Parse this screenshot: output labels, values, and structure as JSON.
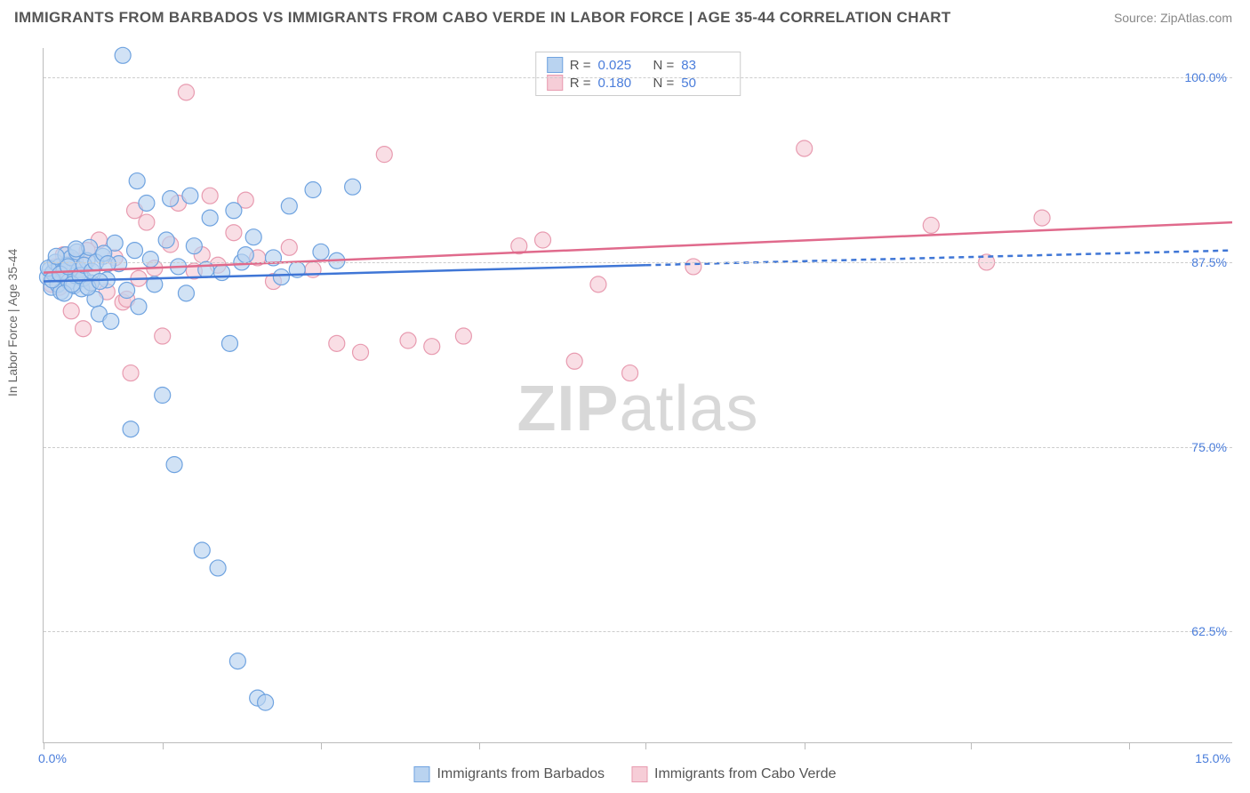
{
  "header": {
    "title": "IMMIGRANTS FROM BARBADOS VS IMMIGRANTS FROM CABO VERDE IN LABOR FORCE | AGE 35-44 CORRELATION CHART",
    "source": "Source: ZipAtlas.com"
  },
  "axis": {
    "y_title": "In Labor Force | Age 35-44",
    "x_min_label": "0.0%",
    "x_max_label": "15.0%",
    "y_labels": [
      "62.5%",
      "75.0%",
      "87.5%",
      "100.0%"
    ],
    "xlim": [
      0,
      15
    ],
    "ylim": [
      55,
      102
    ],
    "y_ticks": [
      62.5,
      75.0,
      87.5,
      100.0
    ],
    "x_tick_positions": [
      0,
      1.5,
      3.5,
      5.5,
      7.6,
      9.6,
      11.7,
      13.7
    ],
    "grid_color": "#cccccc",
    "axis_color": "#bbbbbb",
    "label_color": "#4a7ddb",
    "label_fontsize": 14
  },
  "series": {
    "barbados": {
      "name": "Immigrants from Barbados",
      "color_fill": "#b9d3f0",
      "color_stroke": "#6fa3e0",
      "line_color": "#3f76d6",
      "marker_radius": 9,
      "marker_opacity": 0.65,
      "R": "0.025",
      "N": "83",
      "trend": {
        "x1": 0,
        "y1": 86.2,
        "x2": 7.6,
        "y2": 87.3,
        "dash_x2": 15,
        "dash_y2": 88.3
      },
      "points": [
        [
          0.05,
          86.5
        ],
        [
          0.08,
          87.0
        ],
        [
          0.1,
          85.8
        ],
        [
          0.12,
          86.8
        ],
        [
          0.15,
          87.5
        ],
        [
          0.18,
          86.0
        ],
        [
          0.2,
          87.2
        ],
        [
          0.22,
          85.5
        ],
        [
          0.25,
          86.9
        ],
        [
          0.28,
          88.0
        ],
        [
          0.3,
          87.3
        ],
        [
          0.32,
          86.2
        ],
        [
          0.35,
          87.8
        ],
        [
          0.38,
          85.9
        ],
        [
          0.4,
          86.6
        ],
        [
          0.42,
          88.2
        ],
        [
          0.45,
          87.0
        ],
        [
          0.48,
          85.7
        ],
        [
          0.5,
          86.4
        ],
        [
          0.55,
          87.6
        ],
        [
          0.58,
          88.5
        ],
        [
          0.6,
          86.1
        ],
        [
          0.65,
          85.0
        ],
        [
          0.7,
          84.0
        ],
        [
          0.75,
          87.9
        ],
        [
          0.8,
          86.3
        ],
        [
          0.85,
          83.5
        ],
        [
          0.9,
          88.8
        ],
        [
          0.95,
          87.4
        ],
        [
          1.0,
          101.5
        ],
        [
          1.05,
          85.6
        ],
        [
          1.1,
          76.2
        ],
        [
          1.15,
          88.3
        ],
        [
          1.18,
          93.0
        ],
        [
          1.2,
          84.5
        ],
        [
          1.3,
          91.5
        ],
        [
          1.35,
          87.7
        ],
        [
          1.4,
          86.0
        ],
        [
          1.5,
          78.5
        ],
        [
          1.55,
          89.0
        ],
        [
          1.6,
          91.8
        ],
        [
          1.65,
          73.8
        ],
        [
          1.7,
          87.2
        ],
        [
          1.8,
          85.4
        ],
        [
          1.85,
          92.0
        ],
        [
          1.9,
          88.6
        ],
        [
          2.0,
          68.0
        ],
        [
          2.05,
          87.0
        ],
        [
          2.1,
          90.5
        ],
        [
          2.2,
          66.8
        ],
        [
          2.25,
          86.8
        ],
        [
          2.35,
          82.0
        ],
        [
          2.4,
          91.0
        ],
        [
          2.45,
          60.5
        ],
        [
          2.5,
          87.5
        ],
        [
          2.55,
          88.0
        ],
        [
          2.65,
          89.2
        ],
        [
          2.7,
          58.0
        ],
        [
          2.8,
          57.7
        ],
        [
          2.9,
          87.8
        ],
        [
          3.0,
          86.5
        ],
        [
          3.1,
          91.3
        ],
        [
          3.2,
          87.0
        ],
        [
          3.4,
          92.4
        ],
        [
          3.5,
          88.2
        ],
        [
          3.7,
          87.6
        ],
        [
          3.9,
          92.6
        ],
        [
          0.06,
          87.1
        ],
        [
          0.11,
          86.3
        ],
        [
          0.16,
          87.9
        ],
        [
          0.21,
          86.7
        ],
        [
          0.26,
          85.4
        ],
        [
          0.31,
          87.2
        ],
        [
          0.36,
          86.0
        ],
        [
          0.41,
          88.4
        ],
        [
          0.46,
          86.6
        ],
        [
          0.51,
          87.3
        ],
        [
          0.56,
          85.8
        ],
        [
          0.61,
          86.9
        ],
        [
          0.66,
          87.5
        ],
        [
          0.71,
          86.2
        ],
        [
          0.76,
          88.1
        ],
        [
          0.81,
          87.4
        ]
      ]
    },
    "cabo_verde": {
      "name": "Immigrants from Cabo Verde",
      "color_fill": "#f6cdd7",
      "color_stroke": "#e89bb0",
      "line_color": "#e06a8c",
      "marker_radius": 9,
      "marker_opacity": 0.65,
      "R": "0.180",
      "N": "50",
      "trend": {
        "x1": 0,
        "y1": 86.8,
        "x2": 15,
        "y2": 90.2
      },
      "points": [
        [
          0.1,
          86.0
        ],
        [
          0.15,
          87.2
        ],
        [
          0.2,
          85.8
        ],
        [
          0.25,
          88.0
        ],
        [
          0.3,
          86.5
        ],
        [
          0.35,
          84.2
        ],
        [
          0.4,
          87.6
        ],
        [
          0.5,
          83.0
        ],
        [
          0.55,
          88.3
        ],
        [
          0.6,
          86.1
        ],
        [
          0.7,
          89.0
        ],
        [
          0.8,
          85.5
        ],
        [
          0.9,
          87.8
        ],
        [
          1.0,
          84.8
        ],
        [
          1.1,
          80.0
        ],
        [
          1.15,
          91.0
        ],
        [
          1.2,
          86.4
        ],
        [
          1.3,
          90.2
        ],
        [
          1.4,
          87.1
        ],
        [
          1.5,
          82.5
        ],
        [
          1.6,
          88.7
        ],
        [
          1.7,
          91.5
        ],
        [
          1.8,
          99.0
        ],
        [
          1.9,
          86.9
        ],
        [
          2.0,
          88.0
        ],
        [
          2.1,
          92.0
        ],
        [
          2.2,
          87.3
        ],
        [
          2.4,
          89.5
        ],
        [
          2.55,
          91.7
        ],
        [
          2.7,
          87.8
        ],
        [
          2.9,
          86.2
        ],
        [
          3.1,
          88.5
        ],
        [
          3.4,
          87.0
        ],
        [
          3.7,
          82.0
        ],
        [
          4.0,
          81.4
        ],
        [
          4.3,
          94.8
        ],
        [
          4.6,
          82.2
        ],
        [
          4.9,
          81.8
        ],
        [
          5.3,
          82.5
        ],
        [
          6.0,
          88.6
        ],
        [
          6.3,
          89.0
        ],
        [
          6.7,
          80.8
        ],
        [
          7.0,
          86.0
        ],
        [
          7.4,
          80.0
        ],
        [
          8.2,
          87.2
        ],
        [
          9.6,
          95.2
        ],
        [
          11.2,
          90.0
        ],
        [
          11.9,
          87.5
        ],
        [
          12.6,
          90.5
        ],
        [
          1.05,
          85.0
        ]
      ]
    }
  },
  "legend_top": {
    "r_label": "R =",
    "n_label": "N ="
  },
  "watermark": {
    "part1": "ZIP",
    "part2": "atlas"
  },
  "colors": {
    "background": "#ffffff",
    "title_color": "#555555",
    "source_color": "#888888",
    "stat_value_color": "#4a7ddb"
  }
}
